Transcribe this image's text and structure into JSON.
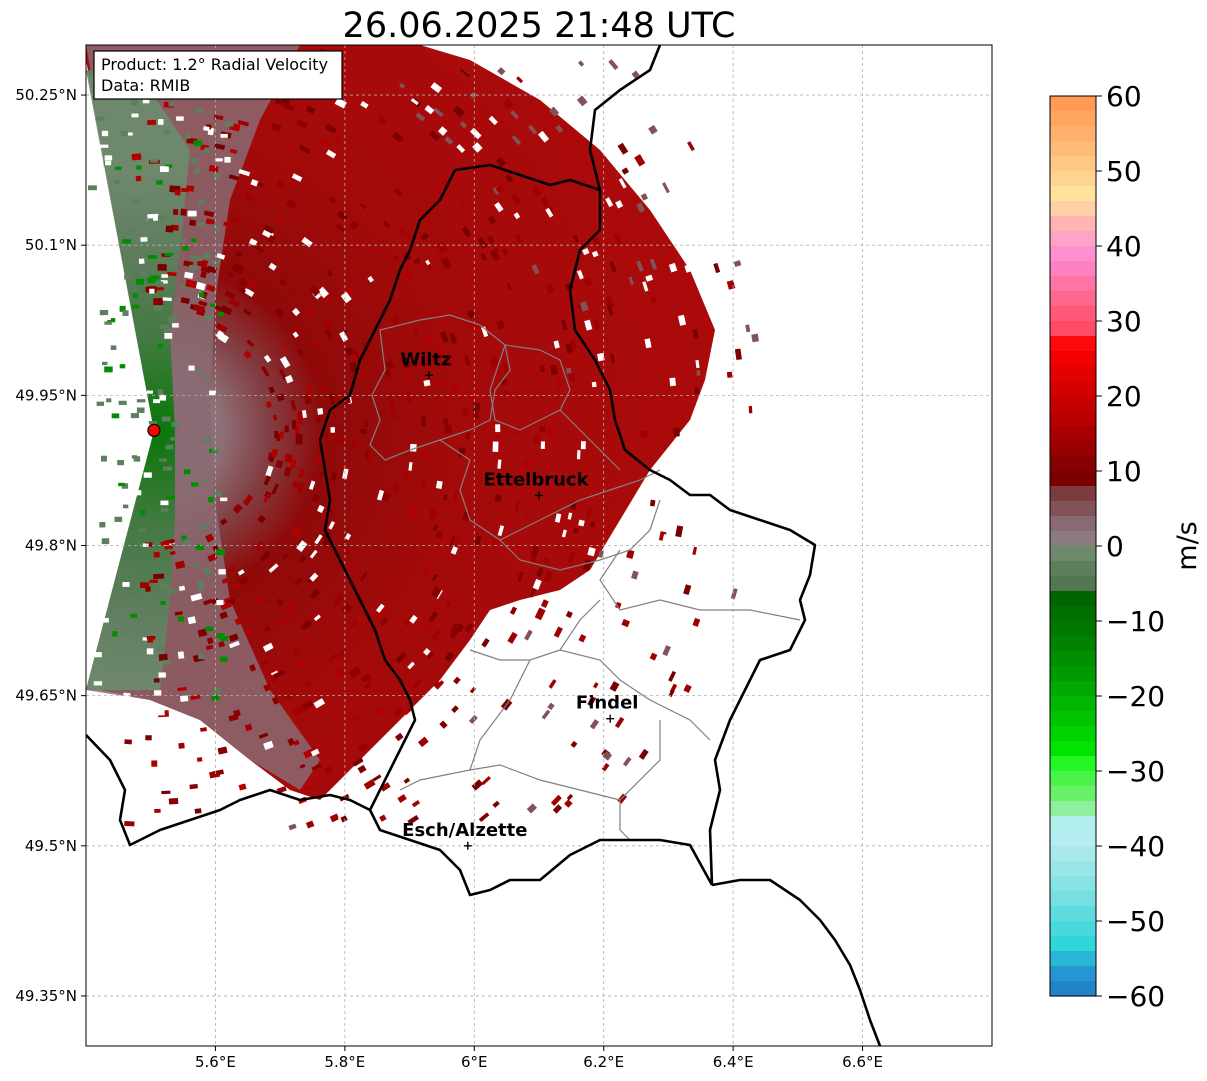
{
  "title": "26.06.2025 21:48 UTC",
  "info_box": {
    "product": "Product: 1.2° Radial Velocity",
    "data": "Data: RMIB"
  },
  "map": {
    "lon_range": [
      5.4,
      6.8
    ],
    "lat_range": [
      49.3,
      50.3
    ],
    "x_ticks": [
      {
        "value": 5.6,
        "label": "5.6°E"
      },
      {
        "value": 5.8,
        "label": "5.8°E"
      },
      {
        "value": 6.0,
        "label": "6°E"
      },
      {
        "value": 6.2,
        "label": "6.2°E"
      },
      {
        "value": 6.4,
        "label": "6.4°E"
      },
      {
        "value": 6.6,
        "label": "6.6°E"
      }
    ],
    "y_ticks": [
      {
        "value": 50.25,
        "label": "50.25°N"
      },
      {
        "value": 50.1,
        "label": "50.1°N"
      },
      {
        "value": 49.95,
        "label": "49.95°N"
      },
      {
        "value": 49.8,
        "label": "49.8°N"
      },
      {
        "value": 49.65,
        "label": "49.65°N"
      },
      {
        "value": 49.5,
        "label": "49.5°N"
      },
      {
        "value": 49.35,
        "label": "49.35°N"
      }
    ],
    "grid": true,
    "radar_site": {
      "lon": 5.505,
      "lat": 49.915
    },
    "cities": [
      {
        "name": "Wiltz",
        "lon": 5.93,
        "lat": 49.97
      },
      {
        "name": "Ettelbruck",
        "lon": 6.1,
        "lat": 49.85
      },
      {
        "name": "Findel",
        "lon": 6.21,
        "lat": 49.627
      },
      {
        "name": "Esch/Alzette",
        "lon": 5.99,
        "lat": 49.5
      }
    ]
  },
  "colorbar": {
    "label": "m/s",
    "min": -60,
    "max": 60,
    "ticks": [
      {
        "value": 60,
        "label": "60"
      },
      {
        "value": 50,
        "label": "50"
      },
      {
        "value": 40,
        "label": "40"
      },
      {
        "value": 30,
        "label": "30"
      },
      {
        "value": 20,
        "label": "20"
      },
      {
        "value": 10,
        "label": "10"
      },
      {
        "value": 0,
        "label": "0"
      },
      {
        "value": -10,
        "label": "−10"
      },
      {
        "value": -20,
        "label": "−20"
      },
      {
        "value": -30,
        "label": "−30"
      },
      {
        "value": -40,
        "label": "−40"
      },
      {
        "value": -50,
        "label": "−50"
      },
      {
        "value": -60,
        "label": "−60"
      }
    ],
    "bands": [
      {
        "from": 58,
        "to": 60,
        "color": "#ff9a57"
      },
      {
        "from": 56,
        "to": 58,
        "color": "#ffa561"
      },
      {
        "from": 54,
        "to": 56,
        "color": "#ffb06c"
      },
      {
        "from": 52,
        "to": 54,
        "color": "#ffbc78"
      },
      {
        "from": 50,
        "to": 52,
        "color": "#ffc884"
      },
      {
        "from": 48,
        "to": 50,
        "color": "#ffd48f"
      },
      {
        "from": 46,
        "to": 48,
        "color": "#ffe29b"
      },
      {
        "from": 44,
        "to": 46,
        "color": "#ffd0a5"
      },
      {
        "from": 42,
        "to": 44,
        "color": "#ffb5b5"
      },
      {
        "from": 40,
        "to": 42,
        "color": "#ffa3c8"
      },
      {
        "from": 38,
        "to": 40,
        "color": "#ff90d0"
      },
      {
        "from": 36,
        "to": 38,
        "color": "#ff82c0"
      },
      {
        "from": 34,
        "to": 36,
        "color": "#ff74a5"
      },
      {
        "from": 32,
        "to": 34,
        "color": "#ff6690"
      },
      {
        "from": 30,
        "to": 32,
        "color": "#ff5878"
      },
      {
        "from": 28,
        "to": 30,
        "color": "#ff4c66"
      },
      {
        "from": 26,
        "to": 28,
        "color": "#ff0a0a"
      },
      {
        "from": 24,
        "to": 26,
        "color": "#f20000"
      },
      {
        "from": 22,
        "to": 24,
        "color": "#e30000"
      },
      {
        "from": 20,
        "to": 22,
        "color": "#d50000"
      },
      {
        "from": 18,
        "to": 20,
        "color": "#c60000"
      },
      {
        "from": 16,
        "to": 18,
        "color": "#b80000"
      },
      {
        "from": 14,
        "to": 16,
        "color": "#a80000"
      },
      {
        "from": 12,
        "to": 14,
        "color": "#990000"
      },
      {
        "from": 10,
        "to": 12,
        "color": "#880000"
      },
      {
        "from": 8,
        "to": 10,
        "color": "#7a0000"
      },
      {
        "from": 6,
        "to": 8,
        "color": "#7d3a3f"
      },
      {
        "from": 4,
        "to": 6,
        "color": "#835259"
      },
      {
        "from": 2,
        "to": 4,
        "color": "#8a6a72"
      },
      {
        "from": 0,
        "to": 2,
        "color": "#8c7b7f"
      },
      {
        "from": -2,
        "to": 0,
        "color": "#6d8a6d"
      },
      {
        "from": -4,
        "to": -2,
        "color": "#5e7f5e"
      },
      {
        "from": -6,
        "to": -4,
        "color": "#527752"
      },
      {
        "from": -8,
        "to": -6,
        "color": "#006400"
      },
      {
        "from": -10,
        "to": -8,
        "color": "#006e00"
      },
      {
        "from": -12,
        "to": -10,
        "color": "#007800"
      },
      {
        "from": -14,
        "to": -12,
        "color": "#008200"
      },
      {
        "from": -16,
        "to": -14,
        "color": "#008e00"
      },
      {
        "from": -18,
        "to": -16,
        "color": "#009a00"
      },
      {
        "from": -20,
        "to": -18,
        "color": "#00a800"
      },
      {
        "from": -22,
        "to": -20,
        "color": "#00b600"
      },
      {
        "from": -24,
        "to": -22,
        "color": "#00c400"
      },
      {
        "from": -26,
        "to": -24,
        "color": "#00d400"
      },
      {
        "from": -28,
        "to": -26,
        "color": "#00e400"
      },
      {
        "from": -30,
        "to": -28,
        "color": "#26f526"
      },
      {
        "from": -32,
        "to": -30,
        "color": "#4af34a"
      },
      {
        "from": -34,
        "to": -32,
        "color": "#69f069"
      },
      {
        "from": -36,
        "to": -34,
        "color": "#8ef09e"
      },
      {
        "from": -38,
        "to": -36,
        "color": "#b2f0ee"
      },
      {
        "from": -40,
        "to": -38,
        "color": "#b5eef0"
      },
      {
        "from": -42,
        "to": -40,
        "color": "#a8eaec"
      },
      {
        "from": -44,
        "to": -42,
        "color": "#98e6e8"
      },
      {
        "from": -46,
        "to": -44,
        "color": "#88e3e5"
      },
      {
        "from": -48,
        "to": -46,
        "color": "#74e0e2"
      },
      {
        "from": -50,
        "to": -48,
        "color": "#5edcdf"
      },
      {
        "from": -52,
        "to": -50,
        "color": "#48d9dc"
      },
      {
        "from": -54,
        "to": -52,
        "color": "#31d6da"
      },
      {
        "from": -56,
        "to": -54,
        "color": "#28b8d6"
      },
      {
        "from": -58,
        "to": -56,
        "color": "#2596cf"
      },
      {
        "from": -60,
        "to": -58,
        "color": "#2284c8"
      }
    ]
  },
  "palette": {
    "wind_away_dark": "#7a0000",
    "wind_away": "#a00000",
    "neutral_brown": "#835259",
    "neutral_grey": "#8a6a72",
    "toward_grey": "#5e7f5e",
    "toward_green": "#008e00",
    "border": "#000000",
    "district": "#808080"
  }
}
